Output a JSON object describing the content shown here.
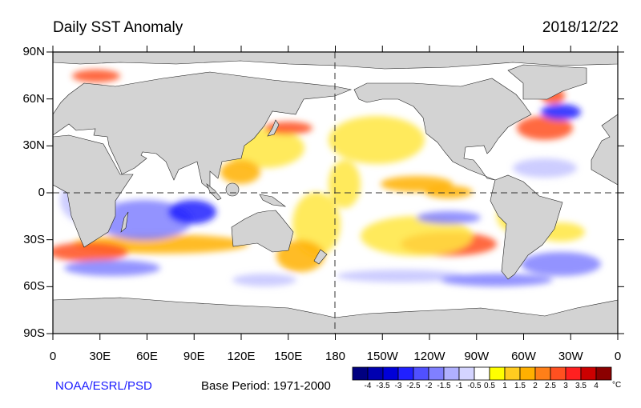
{
  "header": {
    "title": "Daily SST Anomaly",
    "date": "2018/12/22"
  },
  "axes": {
    "lat_labels": [
      "90N",
      "60N",
      "30N",
      "0",
      "30S",
      "60S",
      "90S"
    ],
    "lon_labels": [
      "0",
      "30E",
      "60E",
      "90E",
      "120E",
      "150E",
      "180",
      "150W",
      "120W",
      "90W",
      "60W",
      "30W",
      "0"
    ]
  },
  "footer": {
    "credit": "NOAA/ESRL/PSD",
    "base_period": "Base Period: 1971-2000"
  },
  "colorbar": {
    "labels": [
      "-4",
      "-3.5",
      "-3",
      "-2.5",
      "-2",
      "-1.5",
      "-1",
      "-0.5",
      "0.5",
      "1",
      "1.5",
      "2",
      "2.5",
      "3",
      "3.5",
      "4"
    ],
    "colors": [
      "#000080",
      "#0000b0",
      "#0000d8",
      "#2020ff",
      "#5050ff",
      "#8080ff",
      "#b0b0ff",
      "#d4d4ff",
      "#ffffff",
      "#ffff00",
      "#ffcc20",
      "#ffb000",
      "#ff7f18",
      "#ff5020",
      "#ff2020",
      "#cc0000",
      "#8b0000"
    ],
    "unit": "°C"
  },
  "colors": {
    "land": "#d3d3d3",
    "ocean": "#ffffff"
  }
}
